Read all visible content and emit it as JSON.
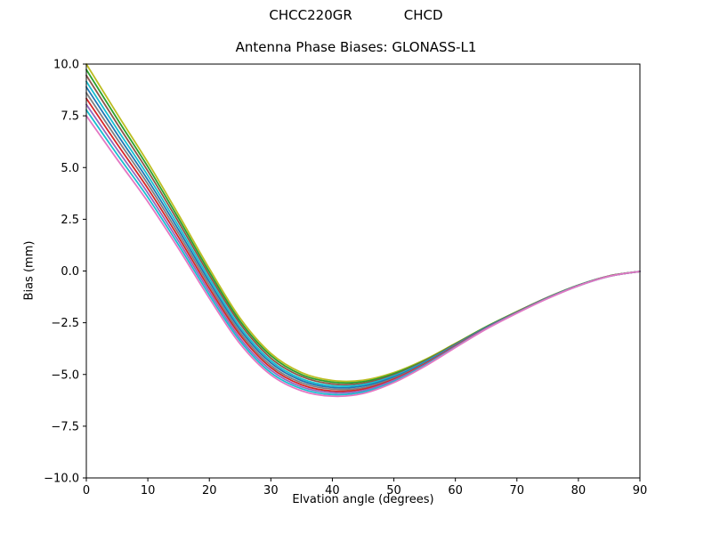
{
  "figure": {
    "station_id": "CHCC220GR",
    "antenna_id": "CHCD",
    "subtitle": "Antenna Phase Biases: GLONASS-L1"
  },
  "chart_data": {
    "type": "line",
    "suptitle": "CHCC220GR        CHCD",
    "title": "Antenna Phase Biases: GLONASS-L1",
    "xlabel": "Elvation angle (degrees)",
    "ylabel": "Bias (mm)",
    "xlim": [
      0,
      90
    ],
    "ylim": [
      -10.0,
      10.0
    ],
    "xticks": [
      0,
      10,
      20,
      30,
      40,
      50,
      60,
      70,
      80,
      90
    ],
    "yticks": [
      -10.0,
      -7.5,
      -5.0,
      -2.5,
      0.0,
      2.5,
      5.0,
      7.5,
      10.0
    ],
    "grid": false,
    "legend_position": "none",
    "background_color": "#ffffff",
    "axes_color": "#000000",
    "linewidth": 1.8,
    "x": [
      0,
      5,
      10,
      15,
      20,
      25,
      30,
      35,
      40,
      45,
      50,
      55,
      60,
      65,
      70,
      75,
      80,
      85,
      90
    ],
    "series": [
      {
        "name": "curve-01",
        "color": "#bcbd22",
        "values": [
          10.0,
          7.6,
          5.25,
          2.72,
          0.12,
          -2.28,
          -3.98,
          -4.91,
          -5.29,
          -5.28,
          -4.91,
          -4.29,
          -3.5,
          -2.69,
          -1.96,
          -1.27,
          -0.68,
          -0.24,
          -0.02
        ]
      },
      {
        "name": "curve-02",
        "color": "#2ca02c",
        "values": [
          9.73,
          7.36,
          5.04,
          2.54,
          -0.04,
          -2.42,
          -4.09,
          -5.01,
          -5.37,
          -5.35,
          -4.96,
          -4.33,
          -3.52,
          -2.7,
          -1.97,
          -1.28,
          -0.68,
          -0.24,
          -0.02
        ]
      },
      {
        "name": "curve-03",
        "color": "#8c564b",
        "values": [
          9.45,
          7.12,
          4.83,
          2.36,
          -0.2,
          -2.55,
          -4.21,
          -5.1,
          -5.46,
          -5.42,
          -5.02,
          -4.36,
          -3.54,
          -2.72,
          -1.98,
          -1.28,
          -0.69,
          -0.24,
          -0.02
        ]
      },
      {
        "name": "curve-04",
        "color": "#17becf",
        "values": [
          9.16,
          6.86,
          4.61,
          2.17,
          -0.36,
          -2.7,
          -4.33,
          -5.21,
          -5.55,
          -5.49,
          -5.07,
          -4.4,
          -3.57,
          -2.73,
          -1.99,
          -1.29,
          -0.69,
          -0.25,
          -0.02
        ]
      },
      {
        "name": "curve-05",
        "color": "#1f77b4",
        "values": [
          8.89,
          6.62,
          4.4,
          1.99,
          -0.52,
          -2.83,
          -4.44,
          -5.3,
          -5.63,
          -5.56,
          -5.12,
          -4.43,
          -3.59,
          -2.74,
          -2.0,
          -1.3,
          -0.7,
          -0.25,
          -0.02
        ]
      },
      {
        "name": "curve-06",
        "color": "#7f7f7f",
        "values": [
          8.61,
          6.38,
          4.2,
          1.81,
          -0.68,
          -2.97,
          -4.56,
          -5.4,
          -5.71,
          -5.64,
          -5.18,
          -4.47,
          -3.61,
          -2.76,
          -2.0,
          -1.3,
          -0.7,
          -0.25,
          -0.02
        ]
      },
      {
        "name": "curve-07",
        "color": "#d62728",
        "values": [
          8.34,
          6.14,
          3.99,
          1.63,
          -0.84,
          -3.1,
          -4.67,
          -5.5,
          -5.8,
          -5.71,
          -5.23,
          -4.5,
          -3.63,
          -2.77,
          -2.01,
          -1.31,
          -0.71,
          -0.25,
          -0.02
        ]
      },
      {
        "name": "curve-08",
        "color": "#9467bd",
        "values": [
          8.05,
          5.88,
          3.77,
          1.44,
          -1.0,
          -3.25,
          -4.79,
          -5.6,
          -5.88,
          -5.78,
          -5.28,
          -4.54,
          -3.66,
          -2.78,
          -2.02,
          -1.32,
          -0.71,
          -0.26,
          -0.02
        ]
      },
      {
        "name": "curve-09",
        "color": "#17becf",
        "values": [
          7.78,
          5.64,
          3.56,
          1.26,
          -1.16,
          -3.38,
          -4.91,
          -5.69,
          -5.97,
          -5.85,
          -5.34,
          -4.57,
          -3.68,
          -2.8,
          -2.03,
          -1.32,
          -0.72,
          -0.26,
          -0.02
        ]
      },
      {
        "name": "curve-10",
        "color": "#e377c2",
        "values": [
          7.5,
          5.4,
          3.35,
          1.08,
          -1.32,
          -3.52,
          -5.02,
          -5.79,
          -6.05,
          -5.92,
          -5.39,
          -4.61,
          -3.7,
          -2.81,
          -2.04,
          -1.33,
          -0.72,
          -0.26,
          -0.02
        ]
      }
    ]
  }
}
